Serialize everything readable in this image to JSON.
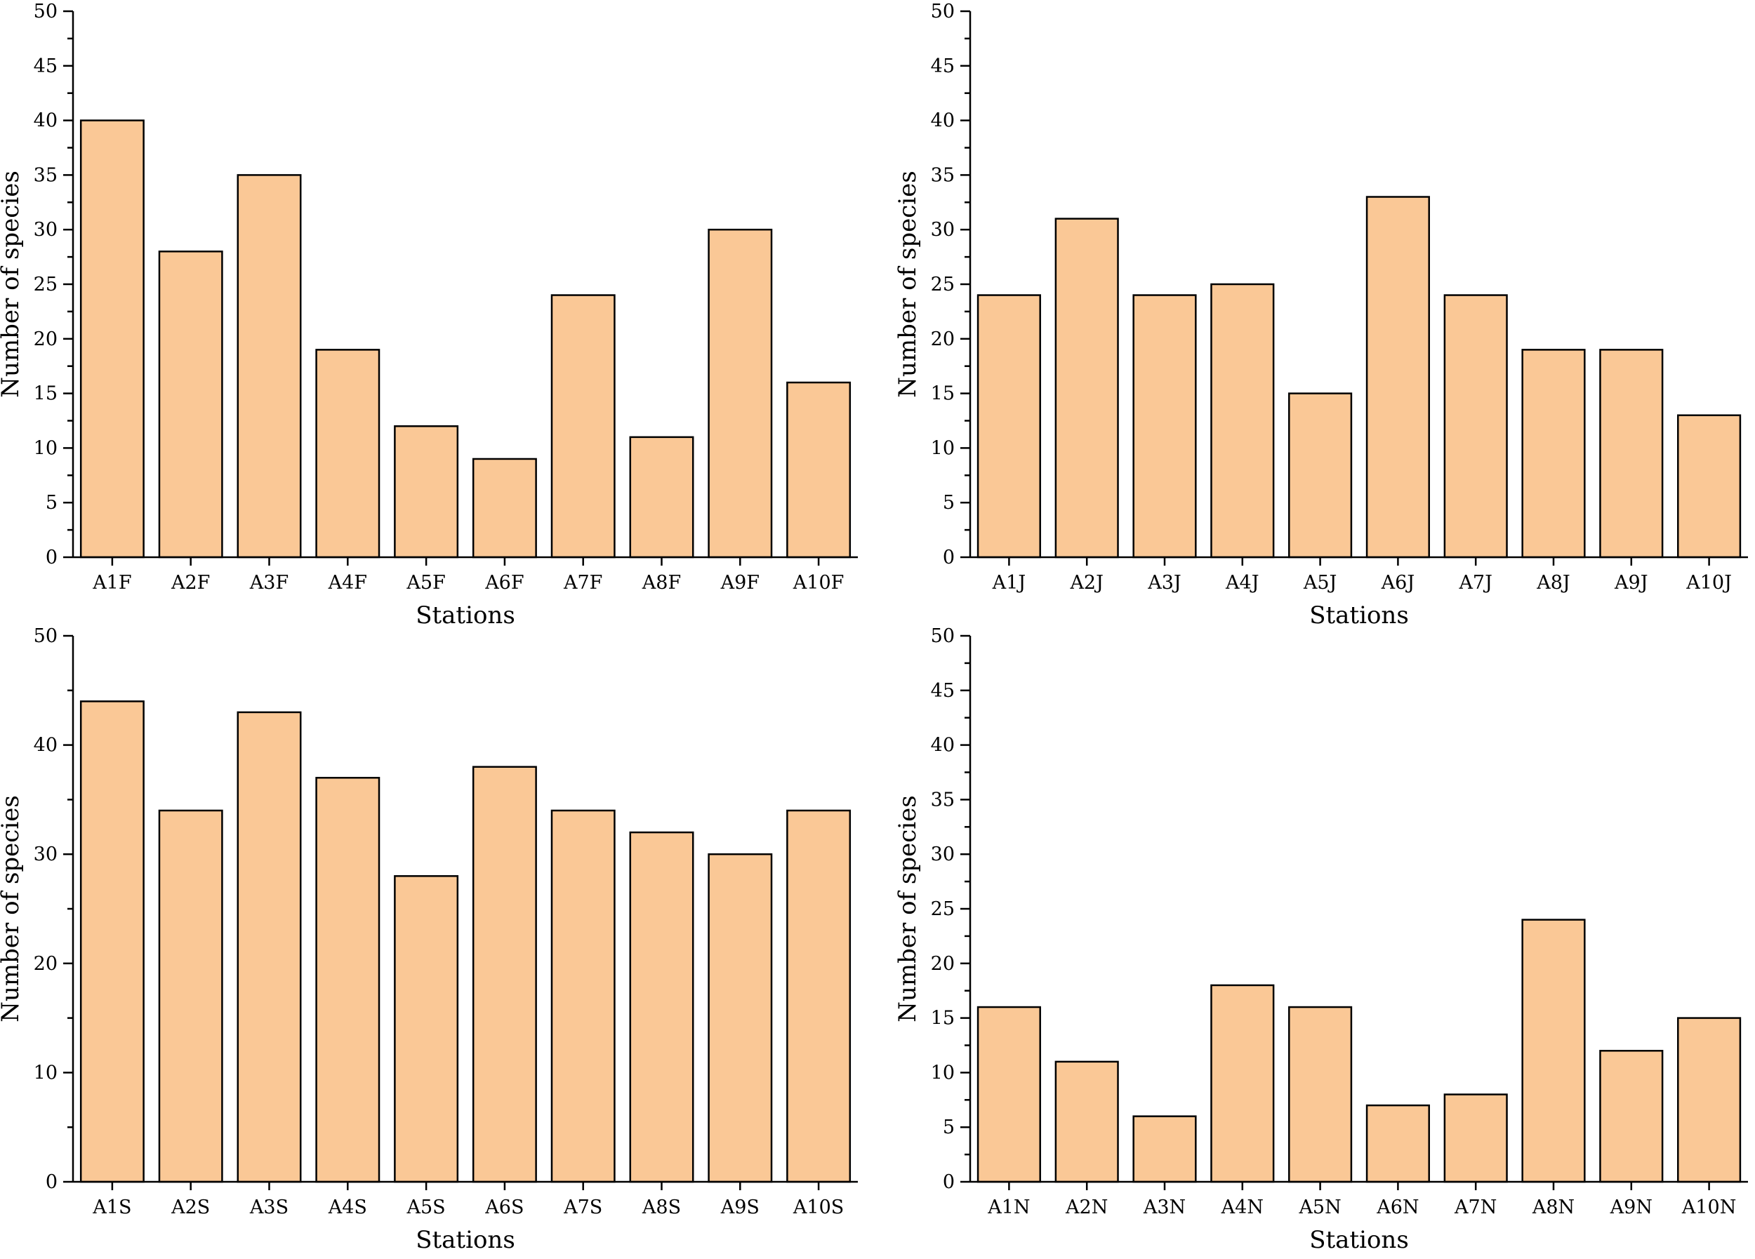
{
  "chart_data": [
    {
      "type": "bar",
      "categories": [
        "A1F",
        "A2F",
        "A3F",
        "A4F",
        "A5F",
        "A6F",
        "A7F",
        "A8F",
        "A9F",
        "A10F"
      ],
      "values": [
        40,
        28,
        35,
        19,
        12,
        9,
        24,
        11,
        30,
        16
      ],
      "title": "",
      "xlabel": "Stations",
      "ylabel": "Number of species",
      "ylim": [
        0,
        50
      ],
      "yticks": [
        0,
        5,
        10,
        15,
        20,
        25,
        30,
        35,
        40,
        45,
        50
      ],
      "grid": false,
      "bar_color": "#FAC896"
    },
    {
      "type": "bar",
      "categories": [
        "A1J",
        "A2J",
        "A3J",
        "A4J",
        "A5J",
        "A6J",
        "A7J",
        "A8J",
        "A9J",
        "A10J"
      ],
      "values": [
        24,
        31,
        24,
        25,
        15,
        33,
        24,
        19,
        19,
        13
      ],
      "title": "",
      "xlabel": "Stations",
      "ylabel": "Number of species",
      "ylim": [
        0,
        50
      ],
      "yticks": [
        0,
        5,
        10,
        15,
        20,
        25,
        30,
        35,
        40,
        45,
        50
      ],
      "grid": false,
      "bar_color": "#FAC896"
    },
    {
      "type": "bar",
      "categories": [
        "A1S",
        "A2S",
        "A3S",
        "A4S",
        "A5S",
        "A6S",
        "A7S",
        "A8S",
        "A9S",
        "A10S"
      ],
      "values": [
        44,
        34,
        43,
        37,
        28,
        38,
        34,
        32,
        30,
        34
      ],
      "title": "",
      "xlabel": "Stations",
      "ylabel": "Number of species",
      "ylim": [
        0,
        50
      ],
      "yticks": [
        0,
        10,
        20,
        30,
        40,
        50
      ],
      "grid": false,
      "bar_color": "#FAC896"
    },
    {
      "type": "bar",
      "categories": [
        "A1N",
        "A2N",
        "A3N",
        "A4N",
        "A5N",
        "A6N",
        "A7N",
        "A8N",
        "A9N",
        "A10N"
      ],
      "values": [
        16,
        11,
        6,
        18,
        16,
        7,
        8,
        24,
        12,
        15
      ],
      "title": "",
      "xlabel": "Stations",
      "ylabel": "Number of species",
      "ylim": [
        0,
        50
      ],
      "yticks": [
        0,
        5,
        10,
        15,
        20,
        25,
        30,
        35,
        40,
        45,
        50
      ],
      "grid": false,
      "bar_color": "#FAC896"
    }
  ]
}
